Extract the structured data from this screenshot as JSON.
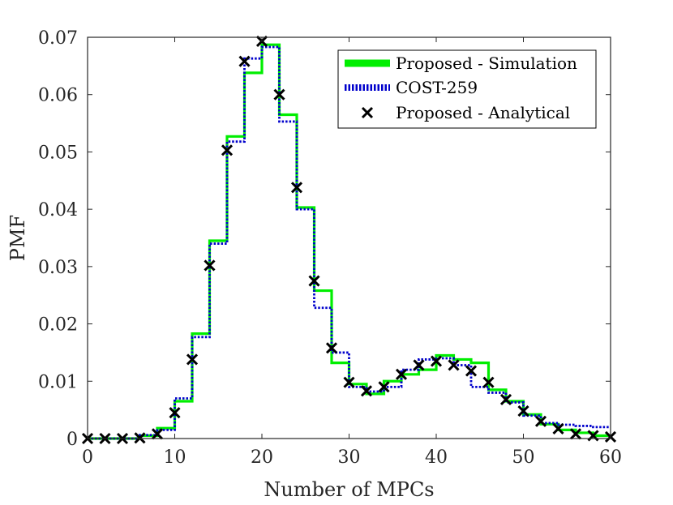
{
  "chart_data": {
    "type": "line",
    "title": "",
    "xlabel": "Number of MPCs",
    "ylabel": "PMF",
    "xlim": [
      0,
      60
    ],
    "ylim": [
      0,
      0.07
    ],
    "xticks": [
      0,
      10,
      20,
      30,
      40,
      50,
      60
    ],
    "xtick_labels": [
      "0",
      "10",
      "20",
      "30",
      "40",
      "50",
      "60"
    ],
    "yticks": [
      0,
      0.01,
      0.02,
      0.03,
      0.04,
      0.05,
      0.06,
      0.07
    ],
    "ytick_labels": [
      "0",
      "0.01",
      "0.02",
      "0.03",
      "0.04",
      "0.05",
      "0.06",
      "0.07"
    ],
    "grid": false,
    "legend_position": "top-right",
    "bin_edges": [
      6,
      8,
      10,
      12,
      14,
      16,
      18,
      20,
      22,
      24,
      26,
      28,
      30,
      32,
      34,
      36,
      38,
      40,
      42,
      44,
      46,
      48,
      50,
      52,
      54,
      56,
      58,
      60
    ],
    "series": [
      {
        "name": "Proposed - Simulation",
        "style": "stairs",
        "color": "#00ee00",
        "values": [
          0.0005,
          0.0018,
          0.0065,
          0.0183,
          0.0345,
          0.0527,
          0.0638,
          0.0687,
          0.0565,
          0.0403,
          0.0258,
          0.0132,
          0.0095,
          0.0078,
          0.01,
          0.0112,
          0.012,
          0.0145,
          0.0138,
          0.0132,
          0.0085,
          0.0065,
          0.0042,
          0.0025,
          0.0015,
          0.001,
          0.0005
        ]
      },
      {
        "name": "COST-259",
        "style": "stairs-dotted",
        "color": "#0000cc",
        "values": [
          0.0006,
          0.0015,
          0.007,
          0.0177,
          0.034,
          0.0518,
          0.0663,
          0.0683,
          0.0553,
          0.04,
          0.0228,
          0.015,
          0.009,
          0.0082,
          0.009,
          0.012,
          0.0138,
          0.014,
          0.0128,
          0.009,
          0.008,
          0.0063,
          0.004,
          0.0027,
          0.0024,
          0.0022,
          0.002
        ]
      },
      {
        "name": "Proposed - Analytical",
        "style": "markers-x",
        "color": "#000000",
        "x": [
          0,
          2,
          4,
          6,
          8,
          10,
          12,
          14,
          16,
          18,
          20,
          22,
          24,
          26,
          28,
          30,
          32,
          34,
          36,
          38,
          40,
          42,
          44,
          46,
          48,
          50,
          52,
          54,
          56,
          58,
          60
        ],
        "values": [
          0,
          0,
          0,
          0.0001,
          0.0008,
          0.0045,
          0.0138,
          0.0302,
          0.0503,
          0.0658,
          0.0693,
          0.06,
          0.0438,
          0.0275,
          0.0158,
          0.0098,
          0.0083,
          0.009,
          0.0112,
          0.0128,
          0.0135,
          0.0128,
          0.0118,
          0.0098,
          0.0068,
          0.0048,
          0.003,
          0.0017,
          0.0008,
          0.0005,
          0.0003
        ]
      }
    ]
  }
}
